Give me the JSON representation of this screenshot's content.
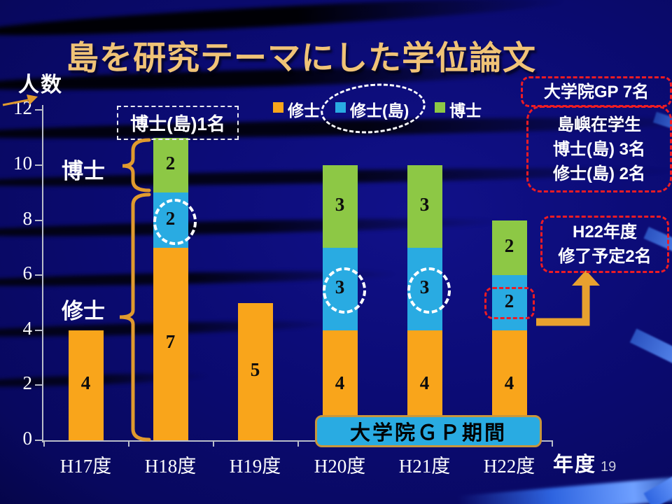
{
  "slide": {
    "title": "島を研究テーマにした学位論文",
    "page_number": "19",
    "colors": {
      "background": "#0B0B74",
      "title_gold": "#F0C377",
      "bar_orange": "#F9A51B",
      "bar_blue": "#29ABE2",
      "bar_green": "#8DC845",
      "annotation_red": "#ED1C24",
      "brace_orange": "#E09A2E",
      "gp_box_fill": "#29ABE2",
      "gp_box_border": "#C8963C",
      "axis_gray": "#B9BDC9"
    }
  },
  "chart_data": {
    "type": "bar",
    "stacked": true,
    "title": "島を研究テーマにした学位論文",
    "xlabel": "年度",
    "ylabel": "人数",
    "ylim": [
      0,
      12
    ],
    "yticks": [
      0,
      2,
      4,
      6,
      8,
      10,
      12
    ],
    "grid": false,
    "legend_position": "top-center",
    "categories": [
      "H17度",
      "H18度",
      "H19度",
      "H20度",
      "H21度",
      "H22度"
    ],
    "series": [
      {
        "name": "修士",
        "color": "#F9A51B",
        "values": [
          4,
          7,
          5,
          4,
          4,
          4
        ]
      },
      {
        "name": "修士(島)",
        "color": "#29ABE2",
        "values": [
          0,
          2,
          0,
          3,
          3,
          2
        ],
        "highlights": [
          "none",
          "dashed-circle",
          "none",
          "dashed-circle",
          "dashed-circle",
          "red-dashed-box"
        ]
      },
      {
        "name": "博士",
        "color": "#8DC845",
        "values": [
          0,
          2,
          0,
          3,
          3,
          2
        ]
      }
    ],
    "totals": [
      4,
      11,
      5,
      10,
      10,
      8
    ]
  },
  "annotations": {
    "hakase_shima_box": "博士(島)1名",
    "hakase_brace_label": "博士",
    "shushi_brace_label": "修士",
    "gp_total_box": "大学院GP 7名",
    "enrolled_box": [
      "島嶼在学生",
      "博士(島) 3名",
      "修士(島) 2名"
    ],
    "h22_box": [
      "H22年度",
      "修了予定2名"
    ],
    "gp_period_box": "大学院ＧＰ期間"
  }
}
